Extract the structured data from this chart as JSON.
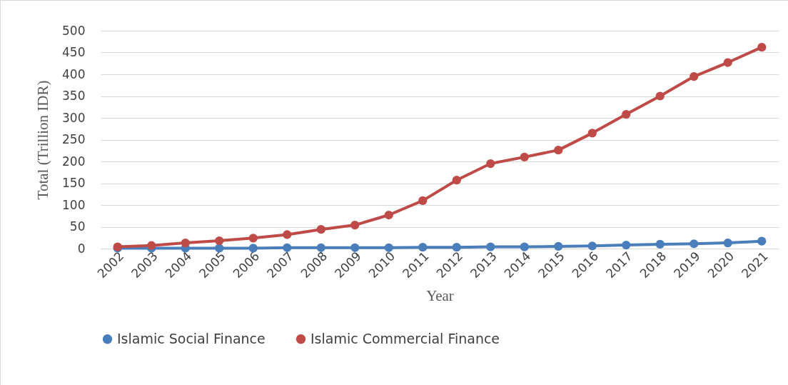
{
  "chart_data": {
    "type": "line",
    "xlabel": "Year",
    "ylabel": "Total (Trillion IDR)",
    "categories": [
      "2002",
      "2003",
      "2004",
      "2005",
      "2006",
      "2007",
      "2008",
      "2009",
      "2010",
      "2011",
      "2012",
      "2013",
      "2014",
      "2015",
      "2016",
      "2017",
      "2018",
      "2019",
      "2020",
      "2021"
    ],
    "series": [
      {
        "name": "Islamic Social Finance",
        "color": "#4a7ebb",
        "values": [
          1,
          1,
          1,
          1,
          1,
          2,
          2,
          2,
          2,
          3,
          3,
          4,
          4,
          5,
          6,
          8,
          10,
          11,
          13,
          17
        ]
      },
      {
        "name": "Islamic Commercial Finance",
        "color": "#be4b48",
        "values": [
          4,
          7,
          13,
          18,
          24,
          32,
          44,
          54,
          77,
          110,
          157,
          195,
          210,
          226,
          265,
          308,
          350,
          395,
          427,
          462
        ]
      }
    ],
    "ylim": [
      0,
      500
    ],
    "yticks": [
      0,
      50,
      100,
      150,
      200,
      250,
      300,
      350,
      400,
      450,
      500
    ],
    "grid": "y",
    "legend": "bottom",
    "marker": "circle",
    "line_style": "solid"
  }
}
